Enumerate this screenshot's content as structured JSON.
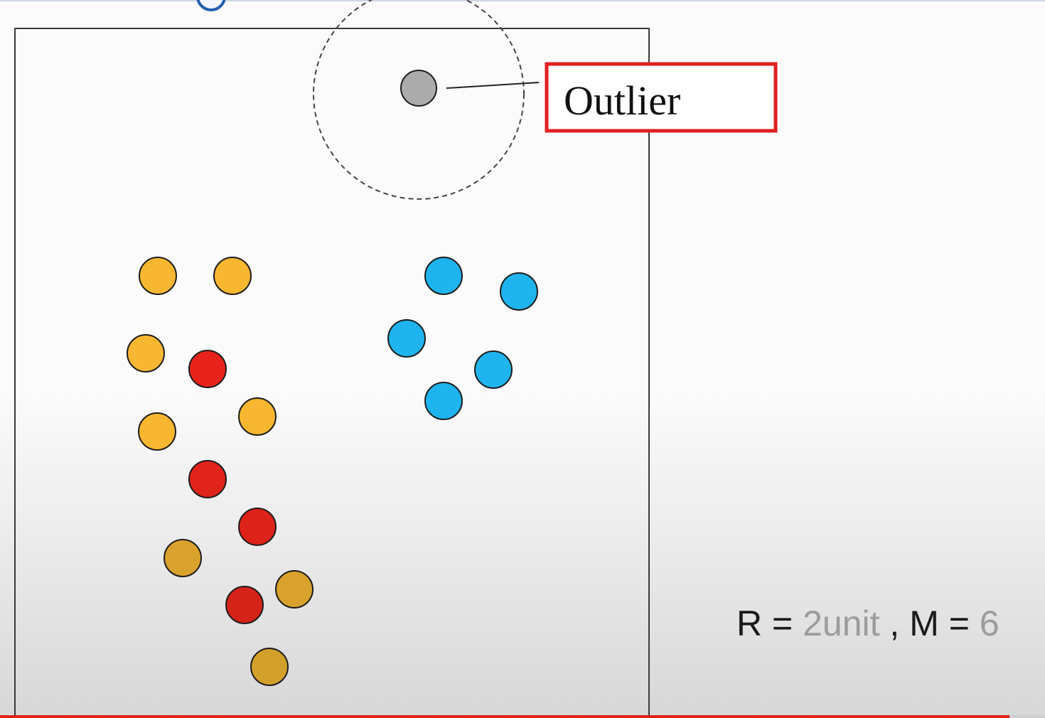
{
  "diagram": {
    "callout": {
      "label": "Outlier",
      "border_color": "#e02020"
    },
    "points": [
      {
        "cluster": "yellow",
        "fill": "#f7b731"
      },
      {
        "cluster": "yellow",
        "fill": "#f7b731"
      },
      {
        "cluster": "yellow",
        "fill": "#f7b731"
      },
      {
        "cluster": "red",
        "fill": "#e8231b"
      },
      {
        "cluster": "yellow",
        "fill": "#f7b731"
      },
      {
        "cluster": "yellow",
        "fill": "#f7b731"
      },
      {
        "cluster": "red",
        "fill": "#e0231b"
      },
      {
        "cluster": "red",
        "fill": "#dd2219"
      },
      {
        "cluster": "yellow",
        "fill": "#d9a22d"
      },
      {
        "cluster": "red",
        "fill": "#d5231a"
      },
      {
        "cluster": "yellow",
        "fill": "#d9a22d"
      },
      {
        "cluster": "yellow",
        "fill": "#d4a02c"
      },
      {
        "cluster": "blue",
        "fill": "#1fb4ee"
      },
      {
        "cluster": "blue",
        "fill": "#1fb4ee"
      },
      {
        "cluster": "blue",
        "fill": "#1fb4ee"
      },
      {
        "cluster": "blue",
        "fill": "#1fb4ee"
      },
      {
        "cluster": "blue",
        "fill": "#1fb4ee"
      },
      {
        "cluster": "outlier",
        "fill": "#ababab"
      }
    ]
  },
  "params": {
    "r_label": "R = ",
    "r_value": "2unit",
    "separator": " , ",
    "m_label": "M = ",
    "m_value": "6"
  },
  "video": {
    "progress_fraction": 0.966
  },
  "colors": {
    "progress": "#e62117",
    "blue_logo": "#1f5fb0",
    "value_text": "#9c9c9c"
  }
}
